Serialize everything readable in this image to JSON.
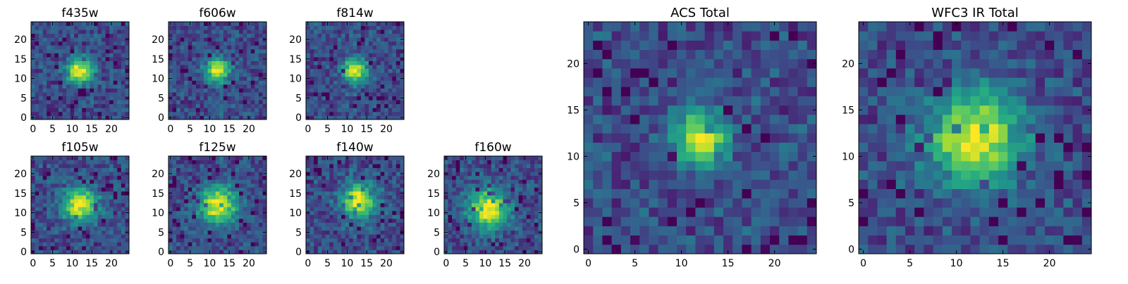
{
  "figure": {
    "description_free": true
  },
  "chart_data": [
    {
      "type": "heatmap",
      "title": "f435w",
      "xlabel": "",
      "ylabel": "",
      "xlim": [
        0,
        24
      ],
      "ylim": [
        0,
        24
      ],
      "xticks": [
        "0",
        "5",
        "10",
        "15",
        "20"
      ],
      "yticks": [
        "0",
        "5",
        "10",
        "15",
        "20"
      ],
      "colormap": "viridis",
      "grid_size": [
        25,
        25
      ],
      "source_peak": [
        12,
        12
      ],
      "peak_width": 2.3,
      "seed": 435
    },
    {
      "type": "heatmap",
      "title": "f606w",
      "xlabel": "",
      "ylabel": "",
      "xlim": [
        0,
        24
      ],
      "ylim": [
        0,
        24
      ],
      "xticks": [
        "0",
        "5",
        "10",
        "15",
        "20"
      ],
      "yticks": [
        "0",
        "5",
        "10",
        "15",
        "20"
      ],
      "colormap": "viridis",
      "grid_size": [
        25,
        25
      ],
      "source_peak": [
        12,
        12
      ],
      "peak_width": 2.1,
      "seed": 606
    },
    {
      "type": "heatmap",
      "title": "f814w",
      "xlabel": "",
      "ylabel": "",
      "xlim": [
        0,
        24
      ],
      "ylim": [
        0,
        24
      ],
      "xticks": [
        "0",
        "5",
        "10",
        "15",
        "20"
      ],
      "yticks": [
        "0",
        "5",
        "10",
        "15",
        "20"
      ],
      "colormap": "viridis",
      "grid_size": [
        25,
        25
      ],
      "source_peak": [
        12,
        12
      ],
      "peak_width": 2.1,
      "seed": 814
    },
    {
      "type": "heatmap",
      "title": "f105w",
      "xlabel": "",
      "ylabel": "",
      "xlim": [
        0,
        24
      ],
      "ylim": [
        0,
        24
      ],
      "xticks": [
        "0",
        "5",
        "10",
        "15",
        "20"
      ],
      "yticks": [
        "0",
        "5",
        "10",
        "15",
        "20"
      ],
      "colormap": "viridis",
      "grid_size": [
        25,
        25
      ],
      "source_peak": [
        12,
        12
      ],
      "peak_width": 3.0,
      "seed": 105
    },
    {
      "type": "heatmap",
      "title": "f125w",
      "xlabel": "",
      "ylabel": "",
      "xlim": [
        0,
        24
      ],
      "ylim": [
        0,
        24
      ],
      "xticks": [
        "0",
        "5",
        "10",
        "15",
        "20"
      ],
      "yticks": [
        "0",
        "5",
        "10",
        "15",
        "20"
      ],
      "colormap": "viridis",
      "grid_size": [
        25,
        25
      ],
      "source_peak": [
        12,
        12
      ],
      "peak_width": 3.2,
      "seed": 125
    },
    {
      "type": "heatmap",
      "title": "f140w",
      "xlabel": "",
      "ylabel": "",
      "xlim": [
        0,
        24
      ],
      "ylim": [
        0,
        24
      ],
      "xticks": [
        "0",
        "5",
        "10",
        "15",
        "20"
      ],
      "yticks": [
        "0",
        "5",
        "10",
        "15",
        "20"
      ],
      "colormap": "viridis",
      "grid_size": [
        25,
        25
      ],
      "source_peak": [
        13,
        13
      ],
      "peak_width": 3.0,
      "seed": 140
    },
    {
      "type": "heatmap",
      "title": "f160w",
      "xlabel": "",
      "ylabel": "",
      "xlim": [
        0,
        24
      ],
      "ylim": [
        0,
        24
      ],
      "xticks": [
        "0",
        "5",
        "10",
        "15",
        "20"
      ],
      "yticks": [
        "0",
        "5",
        "10",
        "15",
        "20"
      ],
      "colormap": "viridis",
      "grid_size": [
        25,
        25
      ],
      "source_peak": [
        11,
        11
      ],
      "peak_width": 3.4,
      "seed": 160
    },
    {
      "type": "heatmap",
      "title": "ACS Total",
      "xlabel": "",
      "ylabel": "",
      "xlim": [
        0,
        24
      ],
      "ylim": [
        0,
        24
      ],
      "xticks": [
        "0",
        "5",
        "10",
        "15",
        "20"
      ],
      "yticks": [
        "0",
        "5",
        "10",
        "15",
        "20"
      ],
      "colormap": "viridis",
      "grid_size": [
        25,
        25
      ],
      "source_peak": [
        12,
        12
      ],
      "peak_width": 1.9,
      "seed": 901
    },
    {
      "type": "heatmap",
      "title": "WFC3 IR Total",
      "xlabel": "",
      "ylabel": "",
      "xlim": [
        0,
        24
      ],
      "ylim": [
        0,
        24
      ],
      "xticks": [
        "0",
        "5",
        "10",
        "15",
        "20"
      ],
      "yticks": [
        "0",
        "5",
        "10",
        "15",
        "20"
      ],
      "colormap": "viridis",
      "grid_size": [
        25,
        25
      ],
      "source_peak": [
        12,
        12
      ],
      "peak_width": 3.4,
      "seed": 902
    }
  ],
  "colors": {
    "low": "#440154",
    "mid": "#21918c",
    "high": "#fde725",
    "axis": "#000000",
    "background": "#ffffff"
  }
}
